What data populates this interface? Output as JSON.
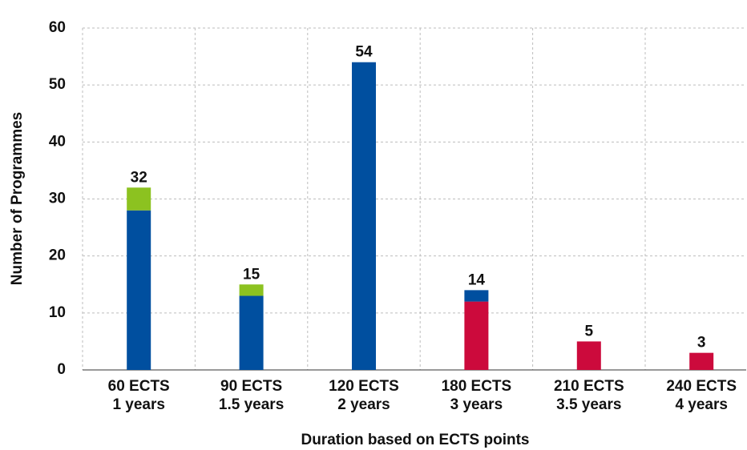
{
  "chart_data": {
    "type": "stacked_bar",
    "categories": [
      [
        "60 ECTS",
        "1 years"
      ],
      [
        "90 ECTS",
        "1.5 years"
      ],
      [
        "120 ECTS",
        "2 years"
      ],
      [
        "180 ECTS",
        "3 years"
      ],
      [
        "210 ECTS",
        "3.5 years"
      ],
      [
        "240 ECTS",
        "4 years"
      ]
    ],
    "series": [
      {
        "color": "#cc0a3c",
        "values": [
          0,
          0,
          0,
          12,
          5,
          3
        ]
      },
      {
        "color": "#004f9f",
        "values": [
          28,
          13,
          54,
          2,
          0,
          0
        ]
      },
      {
        "color": "#8cc220",
        "values": [
          4,
          2,
          0,
          0,
          0,
          0
        ]
      }
    ],
    "totals": [
      32,
      15,
      54,
      14,
      5,
      3
    ],
    "xlabel": "Duration based on ECTS points",
    "ylabel": "Number of Programmes",
    "ylim": [
      0,
      60
    ],
    "yticks": [
      0,
      10,
      20,
      30,
      40,
      50,
      60
    ],
    "grid": true
  }
}
